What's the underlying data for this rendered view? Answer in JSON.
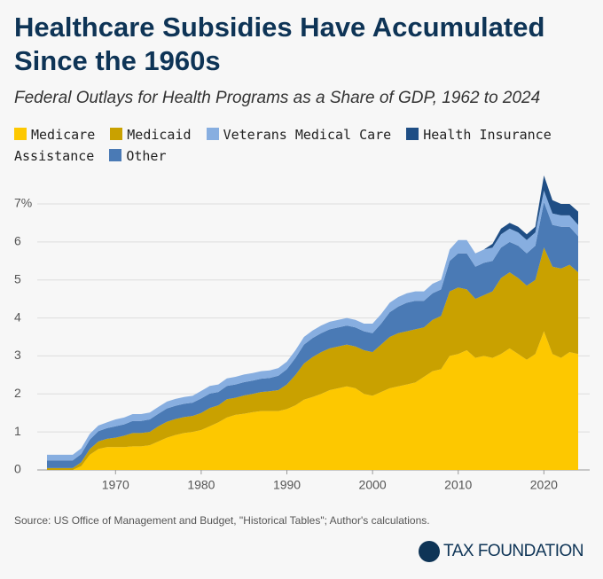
{
  "chart_data": {
    "type": "stacked_area",
    "title": "Healthcare Subsidies Have Accumulated Since the 1960s",
    "subtitle": "Federal Outlays for Health Programs as a Share of GDP, 1962 to 2024",
    "source": "Source: US Office of Management and Budget, \"Historical Tables\"; Author's calculations.",
    "logo": "TAX FOUNDATION",
    "x": [
      1962,
      1963,
      1964,
      1965,
      1966,
      1967,
      1968,
      1969,
      1970,
      1971,
      1972,
      1973,
      1974,
      1975,
      1976,
      1977,
      1978,
      1979,
      1980,
      1981,
      1982,
      1983,
      1984,
      1985,
      1986,
      1987,
      1988,
      1989,
      1990,
      1991,
      1992,
      1993,
      1994,
      1995,
      1996,
      1997,
      1998,
      1999,
      2000,
      2001,
      2002,
      2003,
      2004,
      2005,
      2006,
      2007,
      2008,
      2009,
      2010,
      2011,
      2012,
      2013,
      2014,
      2015,
      2016,
      2017,
      2018,
      2019,
      2020,
      2021,
      2022,
      2023,
      2024
    ],
    "xlim": [
      1962,
      2024
    ],
    "xticks": [
      1970,
      1980,
      1990,
      2000,
      2010,
      2020
    ],
    "ylim": [
      0,
      7.7
    ],
    "yticks": [
      0,
      1,
      2,
      3,
      4,
      5,
      6,
      {
        "value": 7,
        "label": "7%"
      }
    ],
    "grid": true,
    "series": [
      {
        "name": "Medicare",
        "color": "#fdc800",
        "values": [
          0,
          0,
          0,
          0,
          0.1,
          0.4,
          0.55,
          0.6,
          0.6,
          0.6,
          0.62,
          0.62,
          0.65,
          0.75,
          0.85,
          0.92,
          0.97,
          1.0,
          1.05,
          1.15,
          1.25,
          1.38,
          1.45,
          1.48,
          1.52,
          1.55,
          1.55,
          1.55,
          1.6,
          1.7,
          1.85,
          1.92,
          2.0,
          2.1,
          2.15,
          2.2,
          2.15,
          2.0,
          1.95,
          2.05,
          2.15,
          2.2,
          2.25,
          2.3,
          2.45,
          2.6,
          2.65,
          3.0,
          3.05,
          3.15,
          2.95,
          3.0,
          2.95,
          3.05,
          3.2,
          3.05,
          2.9,
          3.05,
          3.65,
          3.05,
          2.95,
          3.1,
          3.05
        ]
      },
      {
        "name": "Medicaid",
        "color": "#c9a100",
        "values": [
          0.05,
          0.05,
          0.05,
          0.05,
          0.1,
          0.15,
          0.2,
          0.22,
          0.25,
          0.3,
          0.35,
          0.35,
          0.35,
          0.4,
          0.42,
          0.42,
          0.42,
          0.42,
          0.45,
          0.48,
          0.45,
          0.48,
          0.45,
          0.48,
          0.48,
          0.5,
          0.52,
          0.55,
          0.65,
          0.8,
          0.95,
          1.05,
          1.1,
          1.1,
          1.1,
          1.1,
          1.1,
          1.15,
          1.15,
          1.25,
          1.35,
          1.4,
          1.4,
          1.4,
          1.3,
          1.35,
          1.4,
          1.7,
          1.75,
          1.6,
          1.55,
          1.6,
          1.75,
          2.0,
          2.0,
          2.0,
          1.95,
          1.95,
          2.2,
          2.3,
          2.35,
          2.3,
          2.15
        ]
      },
      {
        "name": "Veterans Medical Care",
        "color": "#87aee0",
        "values": [
          0.15,
          0.15,
          0.15,
          0.15,
          0.15,
          0.15,
          0.15,
          0.15,
          0.18,
          0.18,
          0.18,
          0.18,
          0.18,
          0.18,
          0.18,
          0.18,
          0.18,
          0.18,
          0.2,
          0.2,
          0.2,
          0.2,
          0.2,
          0.2,
          0.2,
          0.2,
          0.2,
          0.2,
          0.2,
          0.2,
          0.2,
          0.2,
          0.2,
          0.2,
          0.2,
          0.2,
          0.2,
          0.2,
          0.25,
          0.25,
          0.25,
          0.25,
          0.25,
          0.25,
          0.25,
          0.25,
          0.25,
          0.3,
          0.35,
          0.35,
          0.35,
          0.35,
          0.35,
          0.35,
          0.35,
          0.35,
          0.35,
          0.35,
          0.3,
          0.3,
          0.3,
          0.3,
          0.3
        ]
      },
      {
        "name": "Health Insurance Assistance",
        "color": "#1f4e85",
        "values": [
          0,
          0,
          0,
          0,
          0,
          0,
          0,
          0,
          0,
          0,
          0,
          0,
          0,
          0,
          0,
          0,
          0,
          0,
          0,
          0,
          0,
          0,
          0,
          0,
          0,
          0,
          0,
          0,
          0,
          0,
          0,
          0,
          0,
          0,
          0,
          0,
          0,
          0,
          0,
          0,
          0,
          0,
          0,
          0,
          0,
          0,
          0,
          0,
          0,
          0,
          0,
          0,
          0.1,
          0.15,
          0.15,
          0.15,
          0.15,
          0.15,
          0.4,
          0.35,
          0.3,
          0.3,
          0.35
        ]
      },
      {
        "name": "Other",
        "color": "#4a7ab5",
        "values": [
          0.2,
          0.2,
          0.2,
          0.2,
          0.22,
          0.25,
          0.27,
          0.28,
          0.3,
          0.3,
          0.32,
          0.32,
          0.33,
          0.33,
          0.35,
          0.35,
          0.35,
          0.35,
          0.38,
          0.38,
          0.35,
          0.35,
          0.35,
          0.35,
          0.35,
          0.35,
          0.35,
          0.38,
          0.4,
          0.45,
          0.5,
          0.5,
          0.5,
          0.5,
          0.5,
          0.5,
          0.5,
          0.5,
          0.5,
          0.55,
          0.65,
          0.7,
          0.75,
          0.75,
          0.7,
          0.7,
          0.7,
          0.8,
          0.9,
          0.95,
          0.85,
          0.85,
          0.8,
          0.8,
          0.8,
          0.85,
          0.85,
          0.9,
          1.2,
          1.1,
          1.1,
          1.0,
          0.95
        ]
      }
    ]
  }
}
